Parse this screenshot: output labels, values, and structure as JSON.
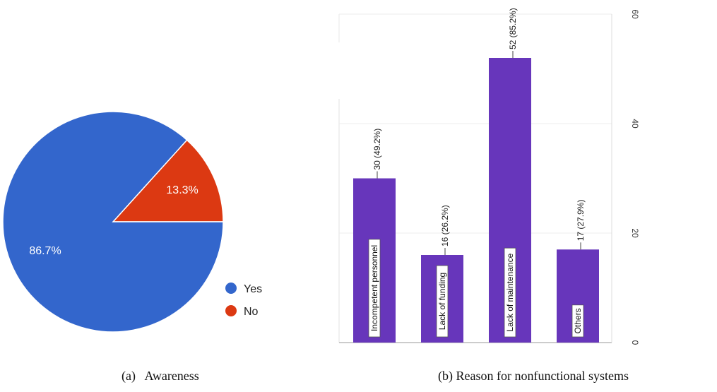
{
  "chart_data": [
    {
      "type": "pie",
      "slices": [
        {
          "label": "Yes",
          "value": 86.7,
          "display": "86.7%",
          "color": "#3366CC"
        },
        {
          "label": "No",
          "value": 13.3,
          "display": "13.3%",
          "color": "#DC3912"
        }
      ],
      "legend": [
        "Yes",
        "No"
      ],
      "legend_placement": "bottom-right",
      "caption": "(a)   Awareness"
    },
    {
      "type": "bar",
      "orientation": "vertical",
      "categories": [
        "Incompetent personnel",
        "Lack of funding",
        "Lack of maintenance",
        "Others"
      ],
      "values": [
        30,
        16,
        52,
        17
      ],
      "data_labels": [
        "30 (49.2%)",
        "16 (26.2%)",
        "52 (85.2%)",
        "17 (27.9%)"
      ],
      "color": "#6736BB",
      "ylim": [
        0,
        60
      ],
      "yticks": [
        0,
        20,
        40,
        60
      ],
      "ytick_labels": [
        "0",
        "20",
        "40",
        "60"
      ],
      "y_axis_side": "right",
      "grid": true,
      "caption": "(b) Reason for nonfunctional systems"
    }
  ]
}
